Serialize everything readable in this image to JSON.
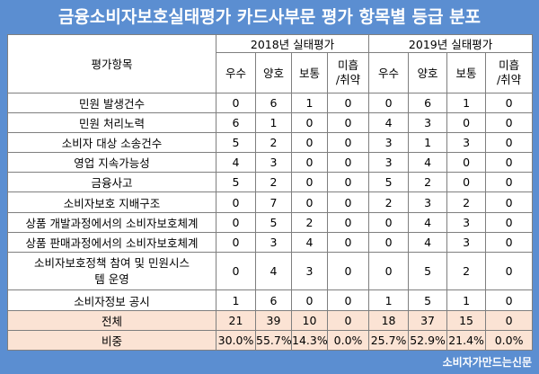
{
  "title": "금융소비자보호실태평가 카드사부문 평가 항목별 등급 분포",
  "header": {
    "item_col": "평가항목",
    "years": [
      "2018년 실태평가",
      "2019년 실태평가"
    ],
    "grades": [
      "우수",
      "양호",
      "보통",
      "미흡/취약"
    ]
  },
  "rows": [
    {
      "label": "민원 발생건수",
      "y2018": [
        "0",
        "6",
        "1",
        "0"
      ],
      "y2019": [
        "0",
        "6",
        "1",
        "0"
      ]
    },
    {
      "label": "민원 처리노력",
      "y2018": [
        "6",
        "1",
        "0",
        "0"
      ],
      "y2019": [
        "4",
        "3",
        "0",
        "0"
      ]
    },
    {
      "label": "소비자 대상 소송건수",
      "y2018": [
        "5",
        "2",
        "0",
        "0"
      ],
      "y2019": [
        "3",
        "1",
        "3",
        "0"
      ]
    },
    {
      "label": "영업 지속가능성",
      "y2018": [
        "4",
        "3",
        "0",
        "0"
      ],
      "y2019": [
        "3",
        "4",
        "0",
        "0"
      ]
    },
    {
      "label": "금융사고",
      "y2018": [
        "5",
        "2",
        "0",
        "0"
      ],
      "y2019": [
        "5",
        "2",
        "0",
        "0"
      ]
    },
    {
      "label": "소비자보호 지배구조",
      "y2018": [
        "0",
        "7",
        "0",
        "0"
      ],
      "y2019": [
        "2",
        "3",
        "2",
        "0"
      ]
    },
    {
      "label": "상품 개발과정에서의 소비자보호체계",
      "y2018": [
        "0",
        "5",
        "2",
        "0"
      ],
      "y2019": [
        "0",
        "4",
        "3",
        "0"
      ]
    },
    {
      "label": "상품 판매과정에서의 소비자보호체계",
      "y2018": [
        "0",
        "3",
        "4",
        "0"
      ],
      "y2019": [
        "0",
        "4",
        "3",
        "0"
      ]
    },
    {
      "label": "소비자보호정책 참여 및 민원시스템 운영",
      "y2018": [
        "0",
        "4",
        "3",
        "0"
      ],
      "y2019": [
        "0",
        "5",
        "2",
        "0"
      ]
    },
    {
      "label": "소비자정보 공시",
      "y2018": [
        "1",
        "6",
        "0",
        "0"
      ],
      "y2019": [
        "1",
        "5",
        "1",
        "0"
      ]
    }
  ],
  "total": {
    "label": "전체",
    "y2018": [
      "21",
      "39",
      "10",
      "0"
    ],
    "y2019": [
      "18",
      "37",
      "15",
      "0"
    ]
  },
  "ratio": {
    "label": "비중",
    "y2018": [
      "30.0%",
      "55.7%",
      "14.3%",
      "0.0%"
    ],
    "y2019": [
      "25.7%",
      "52.9%",
      "21.4%",
      "0.0%"
    ]
  },
  "footer": "소비자가만드는신문"
}
